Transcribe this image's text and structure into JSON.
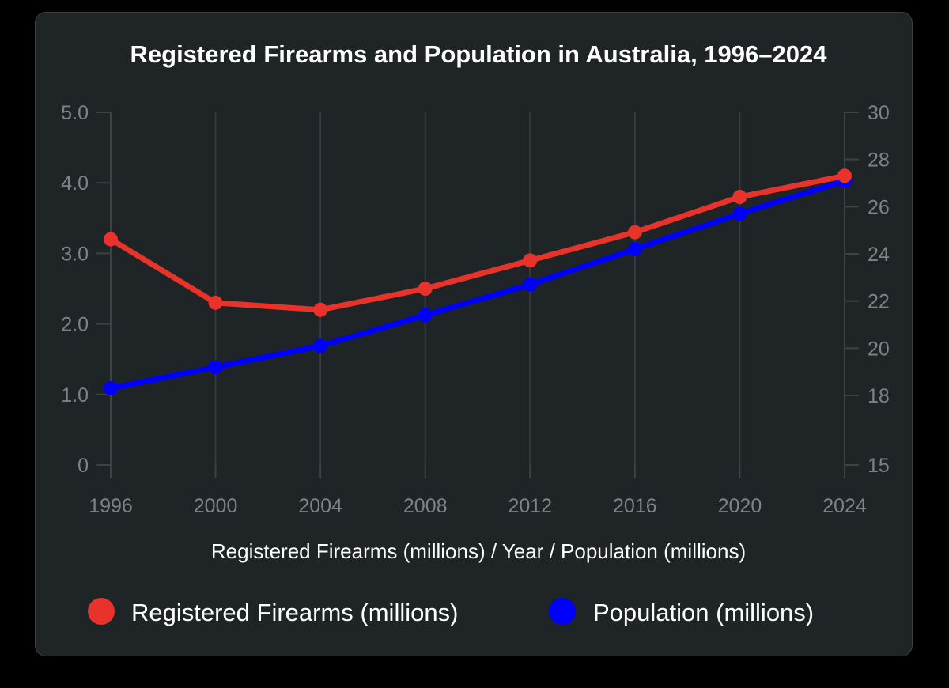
{
  "chart_data": {
    "type": "line",
    "title": "Registered Firearms and Population in Australia, 1996–2024",
    "xlabel": "Registered Firearms (millions) / Year / Population (millions)",
    "x": [
      1996,
      2000,
      2004,
      2008,
      2012,
      2016,
      2020,
      2024
    ],
    "x_tick_labels": [
      "1996",
      "2000",
      "2004",
      "2008",
      "2012",
      "2016",
      "2020",
      "2024"
    ],
    "grid": "vertical lines at each year",
    "legend_position": "bottom",
    "left_axis": {
      "ylim": [
        0,
        5
      ],
      "tick_values": [
        0,
        1,
        2,
        3,
        4,
        5
      ],
      "tick_labels": [
        "0",
        "1.0",
        "2.0",
        "3.0",
        "4.0",
        "5.0"
      ]
    },
    "right_axis": {
      "ylim": [
        15,
        30
      ],
      "scale": "non-linear (15 at 0 level, 18–30 linear)",
      "tick_values": [
        15,
        18,
        20,
        22,
        24,
        26,
        28,
        30
      ],
      "tick_labels": [
        "15",
        "18",
        "20",
        "22",
        "24",
        "26",
        "28",
        "30"
      ]
    },
    "series": [
      {
        "name": "Registered Firearms (millions)",
        "axis": "left",
        "color": "#e8332a",
        "values": [
          3.2,
          2.3,
          2.2,
          2.5,
          2.9,
          3.3,
          3.8,
          4.1
        ]
      },
      {
        "name": "Population (millions)",
        "axis": "right",
        "color": "#0000ff",
        "values": [
          18.3,
          19.2,
          20.1,
          21.4,
          22.7,
          24.2,
          25.7,
          27.1
        ]
      }
    ]
  }
}
